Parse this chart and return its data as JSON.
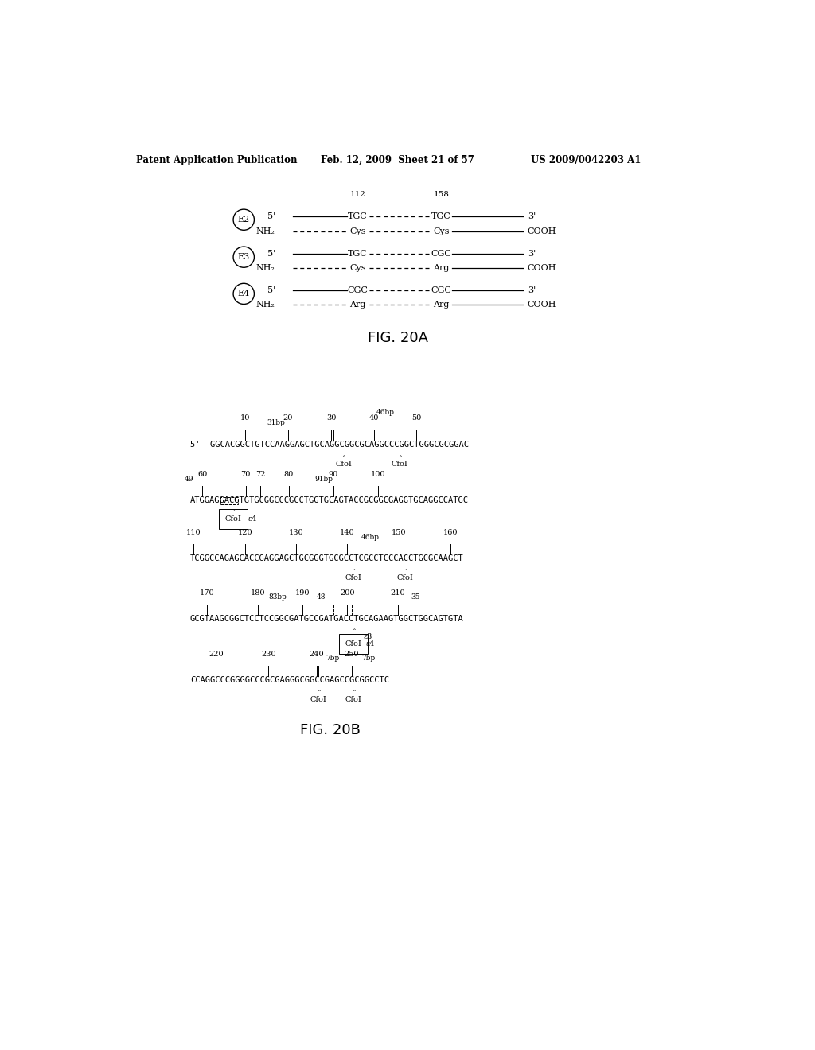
{
  "header_left": "Patent Application Publication",
  "header_mid": "Feb. 12, 2009  Sheet 21 of 57",
  "header_right": "US 2009/0042203 A1",
  "fig20a_label": "FIG. 20A",
  "fig20b_label": "FIG. 20B",
  "bg_color": "#ffffff",
  "text_color": "#000000"
}
